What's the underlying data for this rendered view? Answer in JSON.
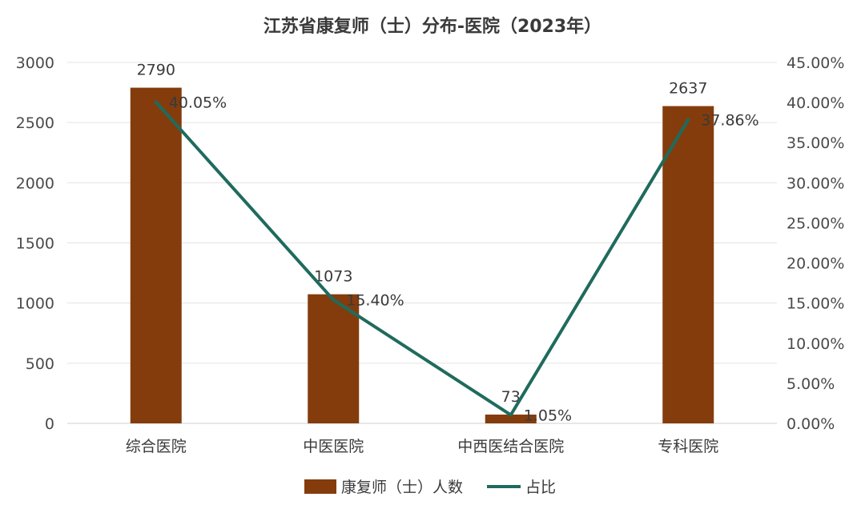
{
  "chart_data": {
    "type": "bar",
    "title": "江苏省康复师（士）分布-医院（2023年）",
    "categories": [
      "综合医院",
      "中医医院",
      "中西医结合医院",
      "专科医院"
    ],
    "series": [
      {
        "name": "康复师（士）人数",
        "type": "bar",
        "axis": "left",
        "values": [
          2790,
          1073,
          73,
          2637
        ],
        "labels": [
          "2790",
          "1073",
          "73",
          "2637"
        ],
        "color": "#843C0C"
      },
      {
        "name": "占比",
        "type": "line",
        "axis": "right",
        "values": [
          40.05,
          15.4,
          1.05,
          37.86
        ],
        "labels": [
          "40.05%",
          "15.40%",
          "1.05%",
          "37.86%"
        ],
        "color": "#1F6B5E"
      }
    ],
    "y_left": {
      "ylim": [
        0,
        3000
      ],
      "ticks": [
        "0",
        "500",
        "1000",
        "1500",
        "2000",
        "2500",
        "3000"
      ]
    },
    "y_right": {
      "ylim": [
        0,
        45
      ],
      "ticks": [
        "0.00%",
        "5.00%",
        "10.00%",
        "15.00%",
        "20.00%",
        "25.00%",
        "30.00%",
        "35.00%",
        "40.00%",
        "45.00%"
      ]
    },
    "grid": true,
    "legend": "bottom"
  }
}
